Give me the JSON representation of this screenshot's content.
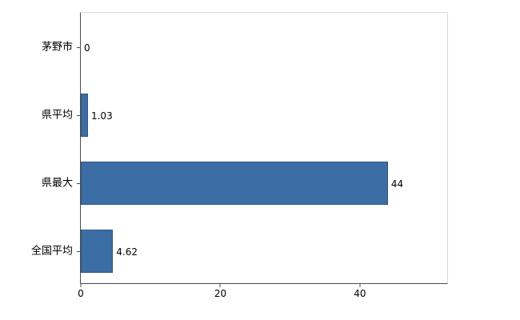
{
  "chart_data": {
    "type": "bar",
    "orientation": "horizontal",
    "title": "",
    "xlabel": "",
    "ylabel": "",
    "categories": [
      "茅野市",
      "県平均",
      "県最大",
      "全国平均"
    ],
    "values": [
      0,
      1.03,
      44,
      4.62
    ],
    "value_labels": [
      "0",
      "1.03",
      "44",
      "4.62"
    ],
    "x_ticks": [
      0,
      20,
      40
    ],
    "x_tick_labels": [
      "0",
      "20",
      "40"
    ],
    "xlim": [
      0,
      52.5
    ],
    "grid": false,
    "legend": "none",
    "bar_color": "#3a6ea5",
    "bar_border_color": "#2d567f",
    "axis_color": "#4d4d4d",
    "frame_color": "#d9d9d9"
  }
}
